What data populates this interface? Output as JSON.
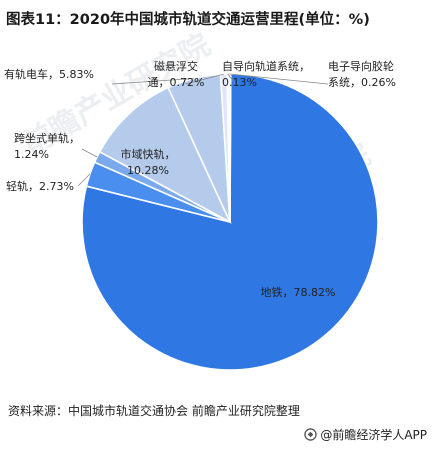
{
  "title": "图表11：2020年中国城市轨道交通运营里程(单位：%)",
  "source": "资料来源：中国城市轨道交通协会 前瞻产业研究院整理",
  "brand": {
    "text": "@前瞻经济学人APP",
    "icon": "qianzhan-logo-icon"
  },
  "watermark": {
    "text": "前瞻产业研究院"
  },
  "colors": {
    "metro": "#2f78e4",
    "light_rail": "#4a8ff0",
    "monorail": "#7aa9ec",
    "suburban": "#b5cbec",
    "maglev": "#dde7f5",
    "apm": "#c9d6ea",
    "tram": "#eef3fa",
    "stroke": "#ffffff"
  },
  "chart_data": {
    "type": "pie",
    "title": "图表11：2020年中国城市轨道交通运营里程(单位：%)",
    "slices": [
      {
        "label": "地铁",
        "value": 78.82,
        "label_text": "地铁，78.82%"
      },
      {
        "label": "轻轨",
        "value": 2.73,
        "label_text": "轻轨，2.73%"
      },
      {
        "label": "跨坐式单轨",
        "value": 1.24,
        "label_lines": [
          "跨坐式单轨，",
          "1.24%"
        ]
      },
      {
        "label": "市域快轨",
        "value": 10.28,
        "label_lines": [
          "市域快轨，",
          "10.28%"
        ]
      },
      {
        "label": "有轨电车",
        "value": 5.83,
        "label_text": "有轨电车，5.83%"
      },
      {
        "label": "磁悬浮交通",
        "value": 0.72,
        "label_lines": [
          "磁悬浮交",
          "通，0.72%"
        ]
      },
      {
        "label": "自导向轨道系统",
        "value": 0.13,
        "label_lines": [
          "自导向轨道系统，",
          "0.13%"
        ]
      },
      {
        "label": "电子导向胶轮系统",
        "value": 0.26,
        "label_lines": [
          "电子导向胶轮",
          "系统，0.26%"
        ]
      }
    ]
  }
}
